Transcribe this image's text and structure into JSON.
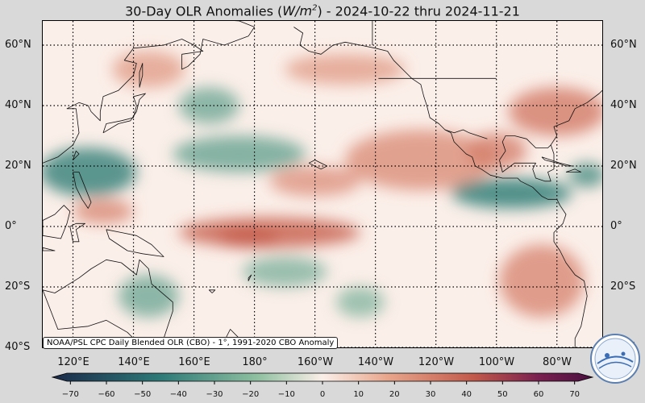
{
  "title": {
    "prefix": "30-Day OLR Anomalies (",
    "unit_base": "W/m",
    "unit_exp": "2",
    "suffix": ") - 2024-10-22 thru 2024-11-21"
  },
  "source_note": "NOAA/PSL CPC Daily Blended OLR (CBO) - 1°, 1991-2020 CBO Anomaly",
  "latitude_labels": [
    "60°N",
    "40°N",
    "20°N",
    "0°",
    "20°S",
    "40°S"
  ],
  "latitude_values": [
    60,
    40,
    20,
    0,
    -20,
    -40
  ],
  "longitude_labels": [
    "120°E",
    "140°E",
    "160°E",
    "180°",
    "160°W",
    "140°W",
    "120°W",
    "100°W",
    "80°W"
  ],
  "longitude_values": [
    120,
    140,
    160,
    180,
    200,
    220,
    240,
    260,
    280
  ],
  "map_extent": {
    "lon_min": 110,
    "lon_max": 295,
    "lat_min": -40,
    "lat_max": 68
  },
  "colorbar": {
    "ticks": [
      "−70",
      "−60",
      "−50",
      "−40",
      "−30",
      "−20",
      "−10",
      "0",
      "10",
      "20",
      "30",
      "40",
      "50",
      "60",
      "70"
    ],
    "min": -75,
    "max": 75,
    "colors": {
      "neg_strong": "#1b2a4a",
      "neg_mid": "#2d7a78",
      "neg_light": "#8fc0a0",
      "neutral": "#fbefe9",
      "pos_light": "#e8a68c",
      "pos_mid": "#c2594a",
      "pos_strong": "#7a2050",
      "pos_max": "#4a1040"
    }
  },
  "anomaly_regions": [
    {
      "kind": "neg",
      "lon": 125,
      "lat": 18,
      "rx": 16,
      "ry": 8,
      "level": 0.8
    },
    {
      "kind": "neg",
      "lon": 175,
      "lat": 24,
      "rx": 22,
      "ry": 6,
      "level": 0.5
    },
    {
      "kind": "neg",
      "lon": 165,
      "lat": 40,
      "rx": 10,
      "ry": 6,
      "level": 0.45
    },
    {
      "kind": "neg",
      "lon": 265,
      "lat": 11,
      "rx": 20,
      "ry": 5,
      "level": 0.85
    },
    {
      "kind": "neg",
      "lon": 290,
      "lat": 17,
      "rx": 6,
      "ry": 4,
      "level": 0.7
    },
    {
      "kind": "neg",
      "lon": 145,
      "lat": -23,
      "rx": 10,
      "ry": 7,
      "level": 0.45
    },
    {
      "kind": "neg",
      "lon": 190,
      "lat": -15,
      "rx": 14,
      "ry": 5,
      "level": 0.35
    },
    {
      "kind": "neg",
      "lon": 215,
      "lat": -25,
      "rx": 8,
      "ry": 5,
      "level": 0.3
    },
    {
      "kind": "pos",
      "lon": 185,
      "lat": -2,
      "rx": 30,
      "ry": 5,
      "level": 0.8
    },
    {
      "kind": "pos",
      "lon": 178,
      "lat": -4,
      "rx": 10,
      "ry": 3,
      "level": 0.95
    },
    {
      "kind": "pos",
      "lon": 235,
      "lat": 22,
      "rx": 25,
      "ry": 10,
      "level": 0.45
    },
    {
      "kind": "pos",
      "lon": 280,
      "lat": 38,
      "rx": 16,
      "ry": 8,
      "level": 0.6
    },
    {
      "kind": "pos",
      "lon": 260,
      "lat": 25,
      "rx": 10,
      "ry": 6,
      "level": 0.55
    },
    {
      "kind": "pos",
      "lon": 275,
      "lat": -18,
      "rx": 14,
      "ry": 12,
      "level": 0.5
    },
    {
      "kind": "pos",
      "lon": 130,
      "lat": 5,
      "rx": 10,
      "ry": 4,
      "level": 0.5
    },
    {
      "kind": "pos",
      "lon": 210,
      "lat": 52,
      "rx": 20,
      "ry": 5,
      "level": 0.3
    },
    {
      "kind": "pos",
      "lon": 145,
      "lat": 52,
      "rx": 12,
      "ry": 6,
      "level": 0.3
    },
    {
      "kind": "pos",
      "lon": 200,
      "lat": 15,
      "rx": 15,
      "ry": 5,
      "level": 0.4
    }
  ],
  "coastlines": [
    [
      [
        110,
        -21
      ],
      [
        115,
        -34
      ],
      [
        125,
        -33
      ],
      [
        131,
        -31
      ],
      [
        138,
        -35
      ],
      [
        141,
        -38
      ],
      [
        146,
        -39
      ],
      [
        150,
        -37
      ],
      [
        153,
        -28
      ],
      [
        153,
        -25
      ],
      [
        146,
        -19
      ],
      [
        145,
        -14
      ],
      [
        142,
        -11
      ],
      [
        141,
        -16
      ],
      [
        136,
        -12
      ],
      [
        131,
        -11
      ],
      [
        126,
        -14
      ],
      [
        122,
        -17
      ],
      [
        114,
        -22
      ],
      [
        110,
        -21
      ]
    ],
    [
      [
        131,
        -1
      ],
      [
        136,
        -2
      ],
      [
        141,
        -3
      ],
      [
        146,
        -6
      ],
      [
        150,
        -10
      ],
      [
        143,
        -9
      ],
      [
        138,
        -8
      ],
      [
        132,
        -4
      ],
      [
        131,
        -1
      ]
    ],
    [
      [
        110,
        2
      ],
      [
        114,
        4
      ],
      [
        117,
        7
      ],
      [
        119,
        5
      ],
      [
        118,
        1
      ],
      [
        116,
        -4
      ],
      [
        110,
        -3
      ],
      [
        110,
        2
      ]
    ],
    [
      [
        119,
        0
      ],
      [
        121,
        1
      ],
      [
        124,
        1
      ],
      [
        121,
        -1
      ],
      [
        122,
        -5
      ],
      [
        120,
        -5
      ],
      [
        119,
        0
      ]
    ],
    [
      [
        110,
        -7
      ],
      [
        114,
        -8
      ],
      [
        110,
        -8
      ],
      [
        110,
        -7
      ]
    ],
    [
      [
        120,
        18
      ],
      [
        122,
        18
      ],
      [
        124,
        13
      ],
      [
        126,
        8
      ],
      [
        125,
        6
      ],
      [
        123,
        9
      ],
      [
        121,
        13
      ],
      [
        120,
        18
      ]
    ],
    [
      [
        120,
        22
      ],
      [
        121,
        25
      ],
      [
        122,
        24
      ],
      [
        120,
        22
      ]
    ],
    [
      [
        110,
        21
      ],
      [
        115,
        23
      ],
      [
        120,
        27
      ],
      [
        122,
        31
      ],
      [
        121,
        39
      ],
      [
        118,
        39
      ],
      [
        122,
        41
      ],
      [
        125,
        40
      ],
      [
        126,
        38
      ],
      [
        129,
        35
      ],
      [
        129,
        38
      ],
      [
        130,
        43
      ],
      [
        135,
        45
      ],
      [
        140,
        50
      ],
      [
        141,
        54
      ],
      [
        137,
        55
      ],
      [
        140,
        59
      ],
      [
        150,
        60
      ],
      [
        156,
        62
      ],
      [
        160,
        60
      ],
      [
        163,
        58
      ],
      [
        156,
        57
      ],
      [
        156,
        52
      ],
      [
        158,
        53
      ],
      [
        162,
        57
      ],
      [
        163,
        62
      ],
      [
        170,
        60
      ],
      [
        178,
        63
      ],
      [
        180,
        66
      ],
      [
        175,
        68
      ],
      [
        160,
        69
      ]
    ],
    [
      [
        130,
        31
      ],
      [
        131,
        34
      ],
      [
        136,
        35
      ],
      [
        140,
        36
      ],
      [
        141,
        40
      ],
      [
        140,
        43
      ],
      [
        144,
        44
      ],
      [
        142,
        42
      ],
      [
        141,
        38
      ],
      [
        139,
        35
      ],
      [
        135,
        34
      ],
      [
        130,
        31
      ]
    ],
    [
      [
        142,
        46
      ],
      [
        143,
        50
      ],
      [
        143,
        54
      ],
      [
        142,
        51
      ],
      [
        142,
        46
      ]
    ],
    [
      [
        166,
        -46
      ],
      [
        172,
        -34
      ],
      [
        175,
        -37
      ],
      [
        178,
        -39
      ],
      [
        174,
        -41
      ],
      [
        170,
        -46
      ],
      [
        166,
        -46
      ]
    ],
    [
      [
        178,
        -17
      ],
      [
        179,
        -16
      ],
      [
        178,
        -18
      ],
      [
        178,
        -17
      ]
    ],
    [
      [
        166,
        -22
      ],
      [
        167,
        -21
      ],
      [
        165,
        -21
      ],
      [
        166,
        -22
      ]
    ],
    [
      [
        193,
        66
      ],
      [
        196,
        64
      ],
      [
        195,
        60
      ],
      [
        198,
        58
      ],
      [
        202,
        57
      ],
      [
        206,
        60
      ],
      [
        210,
        61
      ],
      [
        215,
        60
      ],
      [
        220,
        59
      ],
      [
        224,
        58
      ],
      [
        226,
        55
      ],
      [
        229,
        52
      ],
      [
        232,
        49
      ],
      [
        235,
        47
      ],
      [
        236,
        43
      ],
      [
        237,
        40
      ],
      [
        238,
        36
      ],
      [
        241,
        34
      ],
      [
        243,
        32
      ],
      [
        245,
        31
      ],
      [
        246,
        28
      ],
      [
        248,
        26
      ],
      [
        250,
        24
      ],
      [
        252,
        23
      ],
      [
        253,
        20
      ],
      [
        255,
        19
      ],
      [
        258,
        17
      ],
      [
        262,
        16
      ],
      [
        265,
        16
      ],
      [
        267,
        16
      ],
      [
        268,
        15
      ],
      [
        272,
        13
      ],
      [
        275,
        10
      ],
      [
        277,
        9
      ],
      [
        280,
        9
      ],
      [
        281,
        7
      ],
      [
        283,
        4
      ],
      [
        282,
        1
      ],
      [
        279,
        -2
      ],
      [
        279,
        -5
      ],
      [
        281,
        -8
      ],
      [
        283,
        -12
      ],
      [
        286,
        -16
      ],
      [
        289,
        -18
      ],
      [
        290,
        -23
      ],
      [
        289,
        -28
      ],
      [
        288,
        -33
      ],
      [
        286,
        -37
      ],
      [
        286,
        -40
      ]
    ],
    [
      [
        261,
        22
      ],
      [
        262,
        18
      ],
      [
        266,
        21
      ],
      [
        269,
        21
      ],
      [
        273,
        21
      ],
      [
        272,
        19
      ],
      [
        273,
        16
      ],
      [
        276,
        15
      ],
      [
        278,
        15
      ],
      [
        277,
        18
      ],
      [
        279,
        19
      ],
      [
        279,
        24
      ],
      [
        278,
        27
      ],
      [
        277,
        26
      ],
      [
        275,
        26
      ],
      [
        273,
        26
      ],
      [
        270,
        29
      ],
      [
        266,
        30
      ],
      [
        263,
        30
      ],
      [
        262,
        28
      ],
      [
        263,
        25
      ],
      [
        261,
        22
      ]
    ],
    [
      [
        275,
        23
      ],
      [
        278,
        22
      ],
      [
        281,
        21
      ],
      [
        285,
        20
      ],
      [
        283,
        20
      ],
      [
        280,
        21
      ],
      [
        276,
        22
      ],
      [
        275,
        23
      ]
    ],
    [
      [
        283,
        18
      ],
      [
        286,
        19
      ],
      [
        288,
        18
      ],
      [
        286,
        18
      ],
      [
        283,
        18
      ]
    ],
    [
      [
        278,
        27
      ],
      [
        280,
        30
      ],
      [
        279,
        33
      ],
      [
        284,
        35
      ],
      [
        286,
        39
      ],
      [
        290,
        41
      ],
      [
        294,
        44
      ],
      [
        295,
        45
      ]
    ],
    [
      [
        198,
        21
      ],
      [
        200,
        22
      ],
      [
        204,
        20
      ],
      [
        202,
        19
      ],
      [
        198,
        21
      ]
    ]
  ],
  "borders": [
    [
      [
        219,
        60
      ],
      [
        219,
        69
      ]
    ],
    [
      [
        221,
        49
      ],
      [
        260,
        49
      ]
    ],
    [
      [
        243,
        32
      ],
      [
        246,
        31
      ],
      [
        249,
        32
      ],
      [
        251,
        31
      ],
      [
        254,
        30
      ],
      [
        257,
        29
      ]
    ]
  ]
}
